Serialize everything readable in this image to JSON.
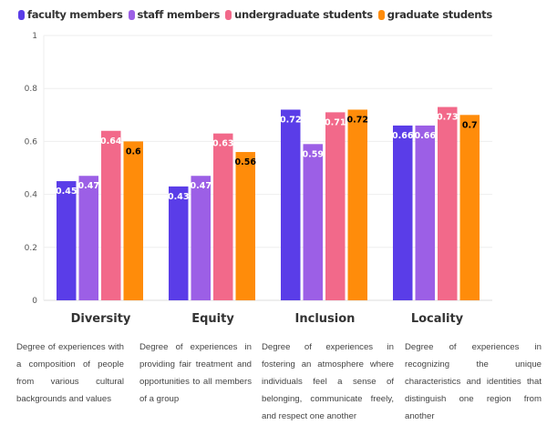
{
  "chart_data": {
    "type": "bar",
    "categories": [
      "Diversity",
      "Equity",
      "Inclusion",
      "Locality"
    ],
    "descriptions": [
      "Degree of experiences with a composition of people from various cultural backgrounds and values",
      "Degree of experiences in providing fair treatment and opportunities to all members of a group",
      "Degree of experiences in fostering an atmosphere where individuals feel a sense of belonging, communicate freely, and respect one another",
      "Degree of experiences in recognizing the unique characteristics and identities that distinguish one region from another"
    ],
    "series": [
      {
        "name": "faculty members",
        "color": "#5a3de8",
        "label_color": "#ffffff",
        "values": [
          0.45,
          0.43,
          0.72,
          0.66
        ]
      },
      {
        "name": "staff members",
        "color": "#9c5fe6",
        "label_color": "#ffffff",
        "values": [
          0.47,
          0.47,
          0.59,
          0.66
        ]
      },
      {
        "name": "undergraduate students",
        "color": "#f2698a",
        "label_color": "#ffffff",
        "values": [
          0.64,
          0.63,
          0.71,
          0.73
        ]
      },
      {
        "name": "graduate students",
        "color": "#ff8c0a",
        "label_color": "#000000",
        "values": [
          0.6,
          0.56,
          0.72,
          0.7
        ]
      }
    ],
    "ylim": [
      0,
      1
    ],
    "yticks": [
      "0",
      "0.2",
      "0.4",
      "0.6",
      "0.8",
      "1"
    ],
    "grid": true,
    "legend": "top-left"
  }
}
